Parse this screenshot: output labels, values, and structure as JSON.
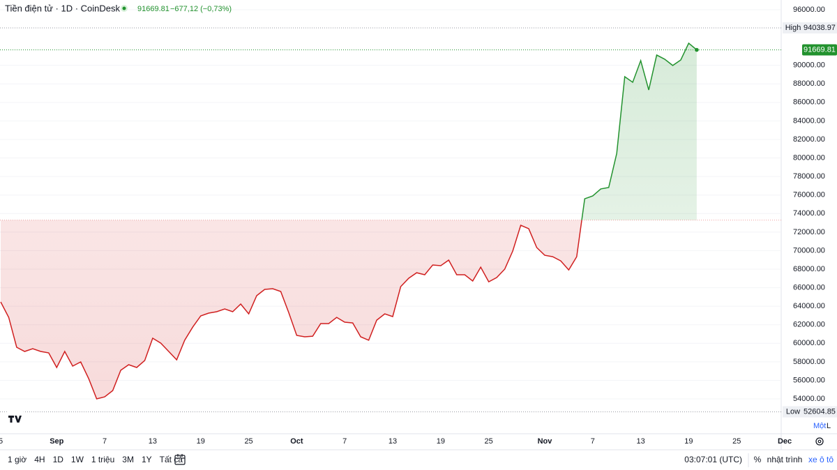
{
  "header": {
    "title": "Tiền điện tử · 1D · CoinDesk",
    "change": "−677,12 (−0,73%)"
  },
  "chart_data": {
    "type": "baseline",
    "categories": [
      "5",
      null,
      null,
      null,
      null,
      null,
      null,
      "Sep",
      null,
      null,
      null,
      null,
      null,
      "7",
      null,
      null,
      null,
      null,
      null,
      "13",
      null,
      null,
      null,
      null,
      null,
      "19",
      null,
      null,
      null,
      null,
      null,
      "25",
      null,
      null,
      null,
      null,
      null,
      "Oct",
      null,
      null,
      null,
      null,
      null,
      "7",
      null,
      null,
      null,
      null,
      null,
      "13",
      null,
      null,
      null,
      null,
      null,
      "19",
      null,
      null,
      null,
      null,
      null,
      "25",
      null,
      null,
      null,
      null,
      null,
      null,
      "Nov",
      null,
      null,
      null,
      null,
      null,
      "7",
      null,
      null,
      null,
      null,
      null,
      "13",
      null,
      null,
      null,
      null,
      null,
      "19",
      null,
      null,
      null,
      null,
      null,
      "25",
      null,
      null,
      null,
      null,
      null,
      "Dec"
    ],
    "values": [
      64460,
      62800,
      59570,
      59120,
      59420,
      59120,
      58970,
      57390,
      59120,
      57540,
      57990,
      56180,
      54000,
      54220,
      54900,
      57090,
      57690,
      57390,
      58140,
      60550,
      60020,
      59120,
      58220,
      60330,
      61750,
      62960,
      63260,
      63410,
      63710,
      63410,
      64240,
      63180,
      65140,
      65820,
      65890,
      65590,
      63330,
      60850,
      60700,
      60770,
      62130,
      62130,
      62800,
      62280,
      62200,
      60700,
      60330,
      62500,
      63180,
      62880,
      66120,
      67020,
      67620,
      67400,
      68450,
      68380,
      68980,
      67400,
      67400,
      66720,
      68220,
      66640,
      67100,
      68000,
      69960,
      72740,
      72370,
      70330,
      69500,
      69350,
      68900,
      67920,
      69350,
      75600,
      75900,
      76660,
      76810,
      80490,
      88770,
      88170,
      90510,
      87340,
      91110,
      90660,
      89980,
      90580,
      92390,
      91669.81,
      null,
      null,
      null,
      null,
      null,
      null,
      null,
      null,
      null,
      null,
      null
    ],
    "baseline": 73300,
    "color_above": "#22922e",
    "color_below": "#d01f1f",
    "ylim": [
      50240,
      97050
    ],
    "yticks": [
      {
        "value": 96000,
        "label": "96000.00"
      },
      {
        "value": 90000,
        "label": "90000.00"
      },
      {
        "value": 88000,
        "label": "88000.00"
      },
      {
        "value": 86000,
        "label": "86000.00"
      },
      {
        "value": 84000,
        "label": "84000.00"
      },
      {
        "value": 82000,
        "label": "82000.00"
      },
      {
        "value": 80000,
        "label": "80000.00"
      },
      {
        "value": 78000,
        "label": "78000.00"
      },
      {
        "value": 76000,
        "label": "76000.00"
      },
      {
        "value": 74000,
        "label": "74000.00"
      },
      {
        "value": 72000,
        "label": "72000.00"
      },
      {
        "value": 70000,
        "label": "70000.00"
      },
      {
        "value": 68000,
        "label": "68000.00"
      },
      {
        "value": 66000,
        "label": "66000.00"
      },
      {
        "value": 64000,
        "label": "64000.00"
      },
      {
        "value": 62000,
        "label": "62000.00"
      },
      {
        "value": 60000,
        "label": "60000.00"
      },
      {
        "value": 58000,
        "label": "58000.00"
      },
      {
        "value": 56000,
        "label": "56000.00"
      },
      {
        "value": 54000,
        "label": "54000.00"
      }
    ],
    "high": {
      "label": "High",
      "value": 94038.97
    },
    "low": {
      "label": "Low",
      "value": 52604.85
    }
  },
  "toolbar": {
    "ranges": [
      "1 giờ",
      "4H",
      "1D",
      "1W",
      "1 triệu",
      "3M",
      "1Y",
      "Tất cả"
    ],
    "time": "03:07:01 (UTC)",
    "percent": "%",
    "log": "nhật trình",
    "auto": "xe ô tô",
    "scale_modes": [
      "Một",
      "L"
    ]
  }
}
